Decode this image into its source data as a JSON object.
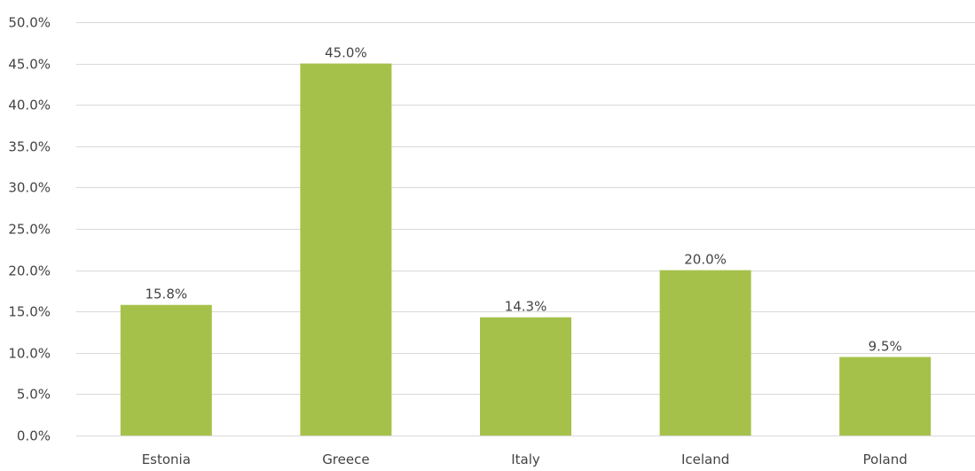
{
  "chart_data": {
    "type": "bar",
    "categories": [
      "Estonia",
      "Greece",
      "Italy",
      "Iceland",
      "Poland"
    ],
    "values": [
      15.8,
      45.0,
      14.3,
      20.0,
      9.5
    ],
    "data_labels": [
      "15.8%",
      "45.0%",
      "14.3%",
      "20.0%",
      "9.5%"
    ],
    "yticks": [
      "0.0%",
      "5.0%",
      "10.0%",
      "15.0%",
      "20.0%",
      "25.0%",
      "30.0%",
      "35.0%",
      "40.0%",
      "45.0%",
      "50.0%"
    ],
    "ylim": [
      0,
      50
    ],
    "grid": true,
    "legend": "none",
    "bar_color": "#a6c14a",
    "grid_color": "#d9d9d9",
    "text_color": "#444444",
    "title": "",
    "xlabel": "",
    "ylabel": ""
  }
}
